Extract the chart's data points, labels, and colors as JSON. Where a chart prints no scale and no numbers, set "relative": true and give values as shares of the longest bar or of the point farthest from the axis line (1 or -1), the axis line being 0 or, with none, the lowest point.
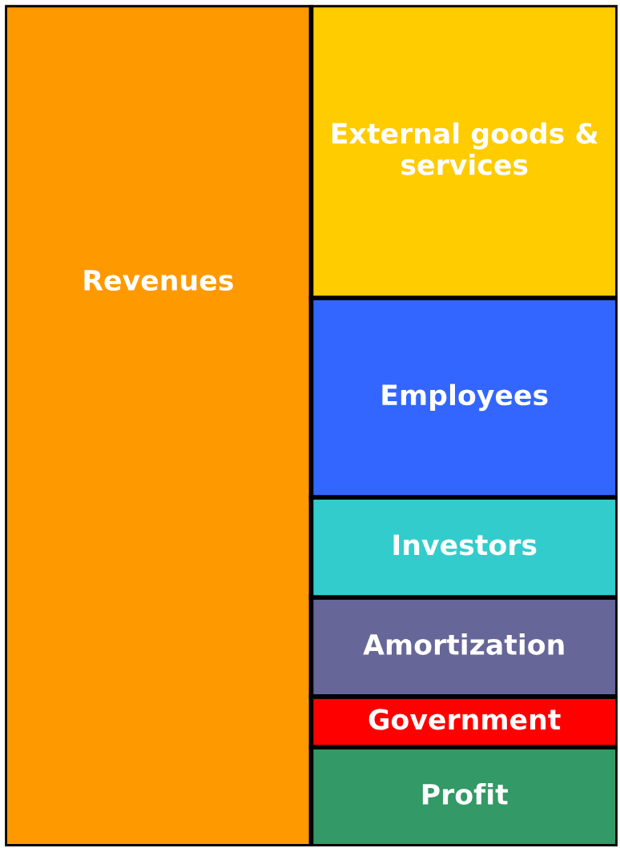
{
  "chart_data": {
    "type": "bar",
    "stacked": true,
    "relative": true,
    "categories": [
      null,
      null
    ],
    "series": [
      {
        "name": "Revenues",
        "color": "#ff9900",
        "values": [
          1,
          null
        ]
      },
      {
        "name": "Profit",
        "color": "#339966",
        "values": [
          null,
          0.118
        ]
      },
      {
        "name": "Government",
        "color": "#ff0000",
        "values": [
          null,
          0.06
        ]
      },
      {
        "name": "Amortization",
        "color": "#666699",
        "values": [
          null,
          0.118
        ]
      },
      {
        "name": "Investors",
        "color": "#33cccc",
        "values": [
          null,
          0.119
        ]
      },
      {
        "name": "Employees",
        "color": "#3366ff",
        "values": [
          null,
          0.237
        ]
      },
      {
        "name": "External goods & services",
        "color": "#ffcc00",
        "values": [
          null,
          0.348
        ]
      }
    ]
  }
}
